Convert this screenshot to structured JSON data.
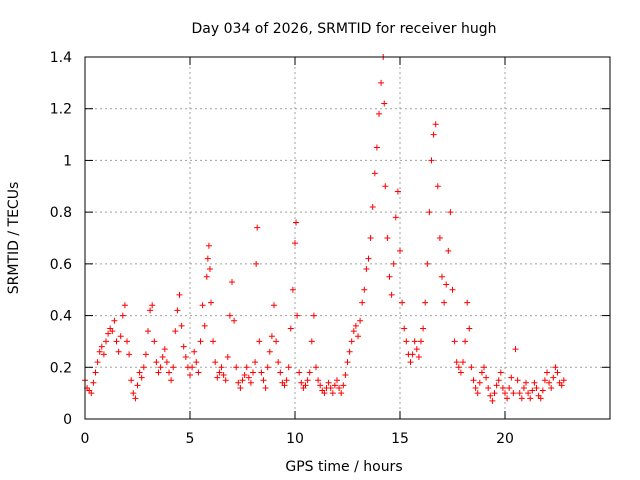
{
  "chart_data": {
    "type": "scatter",
    "title": "Day 034 of 2026, SRMTID for receiver hugh",
    "xlabel": "GPS time / hours",
    "ylabel": "SRMTID / TECUs",
    "xlim": [
      0,
      25
    ],
    "ylim": [
      0,
      1.4
    ],
    "x_ticks": [
      0,
      5,
      10,
      15,
      20
    ],
    "x_tick_labels": [
      "0",
      "5",
      "10",
      "15",
      "20"
    ],
    "y_ticks": [
      0,
      0.2,
      0.4,
      0.6,
      0.8,
      1.0,
      1.2,
      1.4
    ],
    "y_tick_labels": [
      "0",
      "0.2",
      "0.4",
      "0.6",
      "0.8",
      "1",
      "1.2",
      "1.4"
    ],
    "grid": true,
    "marker": "plus",
    "color": "#ff0000",
    "series": [
      {
        "name": "SRMTID",
        "points": [
          [
            0.0,
            0.15
          ],
          [
            0.1,
            0.12
          ],
          [
            0.2,
            0.11
          ],
          [
            0.3,
            0.1
          ],
          [
            0.4,
            0.14
          ],
          [
            0.5,
            0.18
          ],
          [
            0.6,
            0.22
          ],
          [
            0.7,
            0.26
          ],
          [
            0.8,
            0.28
          ],
          [
            0.9,
            0.25
          ],
          [
            1.0,
            0.3
          ],
          [
            1.1,
            0.33
          ],
          [
            1.2,
            0.35
          ],
          [
            1.3,
            0.34
          ],
          [
            1.4,
            0.38
          ],
          [
            1.5,
            0.3
          ],
          [
            1.6,
            0.26
          ],
          [
            1.7,
            0.32
          ],
          [
            1.8,
            0.4
          ],
          [
            1.9,
            0.44
          ],
          [
            2.0,
            0.3
          ],
          [
            2.1,
            0.25
          ],
          [
            2.2,
            0.15
          ],
          [
            2.3,
            0.1
          ],
          [
            2.4,
            0.08
          ],
          [
            2.5,
            0.13
          ],
          [
            2.6,
            0.18
          ],
          [
            2.7,
            0.16
          ],
          [
            2.8,
            0.2
          ],
          [
            2.9,
            0.25
          ],
          [
            3.0,
            0.34
          ],
          [
            3.1,
            0.42
          ],
          [
            3.2,
            0.44
          ],
          [
            3.3,
            0.3
          ],
          [
            3.4,
            0.22
          ],
          [
            3.5,
            0.18
          ],
          [
            3.6,
            0.2
          ],
          [
            3.7,
            0.24
          ],
          [
            3.8,
            0.27
          ],
          [
            3.9,
            0.22
          ],
          [
            4.0,
            0.18
          ],
          [
            4.1,
            0.15
          ],
          [
            4.2,
            0.2
          ],
          [
            4.3,
            0.34
          ],
          [
            4.4,
            0.42
          ],
          [
            4.5,
            0.48
          ],
          [
            4.6,
            0.36
          ],
          [
            4.7,
            0.28
          ],
          [
            4.8,
            0.24
          ],
          [
            4.9,
            0.2
          ],
          [
            5.0,
            0.17
          ],
          [
            5.1,
            0.2
          ],
          [
            5.2,
            0.26
          ],
          [
            5.3,
            0.22
          ],
          [
            5.4,
            0.18
          ],
          [
            5.5,
            0.3
          ],
          [
            5.6,
            0.44
          ],
          [
            5.7,
            0.36
          ],
          [
            5.8,
            0.55
          ],
          [
            5.85,
            0.62
          ],
          [
            5.9,
            0.67
          ],
          [
            5.95,
            0.58
          ],
          [
            6.0,
            0.45
          ],
          [
            6.1,
            0.3
          ],
          [
            6.2,
            0.22
          ],
          [
            6.3,
            0.16
          ],
          [
            6.4,
            0.18
          ],
          [
            6.5,
            0.2
          ],
          [
            6.6,
            0.17
          ],
          [
            6.7,
            0.15
          ],
          [
            6.8,
            0.24
          ],
          [
            6.9,
            0.4
          ],
          [
            7.0,
            0.53
          ],
          [
            7.1,
            0.38
          ],
          [
            7.2,
            0.2
          ],
          [
            7.3,
            0.14
          ],
          [
            7.4,
            0.12
          ],
          [
            7.5,
            0.15
          ],
          [
            7.6,
            0.17
          ],
          [
            7.7,
            0.2
          ],
          [
            7.8,
            0.16
          ],
          [
            7.9,
            0.14
          ],
          [
            8.0,
            0.18
          ],
          [
            8.1,
            0.22
          ],
          [
            8.15,
            0.6
          ],
          [
            8.2,
            0.74
          ],
          [
            8.3,
            0.3
          ],
          [
            8.4,
            0.18
          ],
          [
            8.5,
            0.15
          ],
          [
            8.6,
            0.12
          ],
          [
            8.7,
            0.2
          ],
          [
            8.8,
            0.26
          ],
          [
            8.9,
            0.32
          ],
          [
            9.0,
            0.44
          ],
          [
            9.1,
            0.3
          ],
          [
            9.2,
            0.22
          ],
          [
            9.3,
            0.18
          ],
          [
            9.4,
            0.14
          ],
          [
            9.5,
            0.13
          ],
          [
            9.6,
            0.15
          ],
          [
            9.7,
            0.2
          ],
          [
            9.8,
            0.35
          ],
          [
            9.9,
            0.5
          ],
          [
            10.0,
            0.68
          ],
          [
            10.05,
            0.76
          ],
          [
            10.1,
            0.4
          ],
          [
            10.2,
            0.18
          ],
          [
            10.3,
            0.14
          ],
          [
            10.4,
            0.12
          ],
          [
            10.5,
            0.13
          ],
          [
            10.6,
            0.15
          ],
          [
            10.7,
            0.18
          ],
          [
            10.8,
            0.3
          ],
          [
            10.9,
            0.4
          ],
          [
            11.0,
            0.2
          ],
          [
            11.1,
            0.15
          ],
          [
            11.2,
            0.13
          ],
          [
            11.3,
            0.11
          ],
          [
            11.4,
            0.1
          ],
          [
            11.5,
            0.12
          ],
          [
            11.6,
            0.14
          ],
          [
            11.7,
            0.12
          ],
          [
            11.8,
            0.1
          ],
          [
            11.9,
            0.13
          ],
          [
            12.0,
            0.15
          ],
          [
            12.1,
            0.12
          ],
          [
            12.2,
            0.1
          ],
          [
            12.3,
            0.13
          ],
          [
            12.4,
            0.17
          ],
          [
            12.5,
            0.22
          ],
          [
            12.6,
            0.26
          ],
          [
            12.7,
            0.3
          ],
          [
            12.8,
            0.34
          ],
          [
            12.9,
            0.36
          ],
          [
            13.0,
            0.32
          ],
          [
            13.1,
            0.38
          ],
          [
            13.2,
            0.45
          ],
          [
            13.3,
            0.5
          ],
          [
            13.4,
            0.58
          ],
          [
            13.5,
            0.62
          ],
          [
            13.6,
            0.7
          ],
          [
            13.7,
            0.82
          ],
          [
            13.8,
            0.95
          ],
          [
            13.9,
            1.05
          ],
          [
            14.0,
            1.18
          ],
          [
            14.1,
            1.3
          ],
          [
            14.2,
            1.4
          ],
          [
            14.25,
            1.22
          ],
          [
            14.3,
            0.9
          ],
          [
            14.4,
            0.7
          ],
          [
            14.5,
            0.55
          ],
          [
            14.6,
            0.48
          ],
          [
            14.7,
            0.6
          ],
          [
            14.8,
            0.78
          ],
          [
            14.9,
            0.88
          ],
          [
            15.0,
            0.65
          ],
          [
            15.1,
            0.45
          ],
          [
            15.2,
            0.35
          ],
          [
            15.3,
            0.3
          ],
          [
            15.4,
            0.25
          ],
          [
            15.5,
            0.22
          ],
          [
            15.6,
            0.25
          ],
          [
            15.7,
            0.3
          ],
          [
            15.8,
            0.27
          ],
          [
            15.9,
            0.24
          ],
          [
            16.0,
            0.3
          ],
          [
            16.1,
            0.35
          ],
          [
            16.2,
            0.45
          ],
          [
            16.3,
            0.6
          ],
          [
            16.4,
            0.8
          ],
          [
            16.5,
            1.0
          ],
          [
            16.6,
            1.1
          ],
          [
            16.7,
            1.14
          ],
          [
            16.8,
            0.9
          ],
          [
            16.9,
            0.7
          ],
          [
            17.0,
            0.55
          ],
          [
            17.1,
            0.45
          ],
          [
            17.2,
            0.52
          ],
          [
            17.3,
            0.65
          ],
          [
            17.4,
            0.8
          ],
          [
            17.5,
            0.5
          ],
          [
            17.6,
            0.3
          ],
          [
            17.7,
            0.22
          ],
          [
            17.8,
            0.2
          ],
          [
            17.9,
            0.18
          ],
          [
            18.0,
            0.22
          ],
          [
            18.1,
            0.3
          ],
          [
            18.2,
            0.45
          ],
          [
            18.3,
            0.35
          ],
          [
            18.4,
            0.2
          ],
          [
            18.5,
            0.15
          ],
          [
            18.6,
            0.12
          ],
          [
            18.7,
            0.1
          ],
          [
            18.8,
            0.14
          ],
          [
            18.9,
            0.18
          ],
          [
            19.0,
            0.2
          ],
          [
            19.1,
            0.16
          ],
          [
            19.2,
            0.12
          ],
          [
            19.3,
            0.09
          ],
          [
            19.4,
            0.07
          ],
          [
            19.5,
            0.1
          ],
          [
            19.6,
            0.13
          ],
          [
            19.7,
            0.15
          ],
          [
            19.8,
            0.18
          ],
          [
            19.9,
            0.12
          ],
          [
            20.0,
            0.1
          ],
          [
            20.1,
            0.08
          ],
          [
            20.2,
            0.12
          ],
          [
            20.3,
            0.16
          ],
          [
            20.4,
            0.1
          ],
          [
            20.5,
            0.27
          ],
          [
            20.6,
            0.15
          ],
          [
            20.7,
            0.1
          ],
          [
            20.8,
            0.08
          ],
          [
            20.9,
            0.12
          ],
          [
            21.0,
            0.14
          ],
          [
            21.1,
            0.1
          ],
          [
            21.2,
            0.08
          ],
          [
            21.3,
            0.11
          ],
          [
            21.4,
            0.14
          ],
          [
            21.5,
            0.12
          ],
          [
            21.6,
            0.09
          ],
          [
            21.7,
            0.08
          ],
          [
            21.8,
            0.11
          ],
          [
            21.9,
            0.15
          ],
          [
            22.0,
            0.18
          ],
          [
            22.1,
            0.14
          ],
          [
            22.2,
            0.12
          ],
          [
            22.3,
            0.16
          ],
          [
            22.4,
            0.2
          ],
          [
            22.5,
            0.18
          ],
          [
            22.6,
            0.14
          ],
          [
            22.7,
            0.13
          ],
          [
            22.8,
            0.15
          ]
        ]
      }
    ]
  }
}
